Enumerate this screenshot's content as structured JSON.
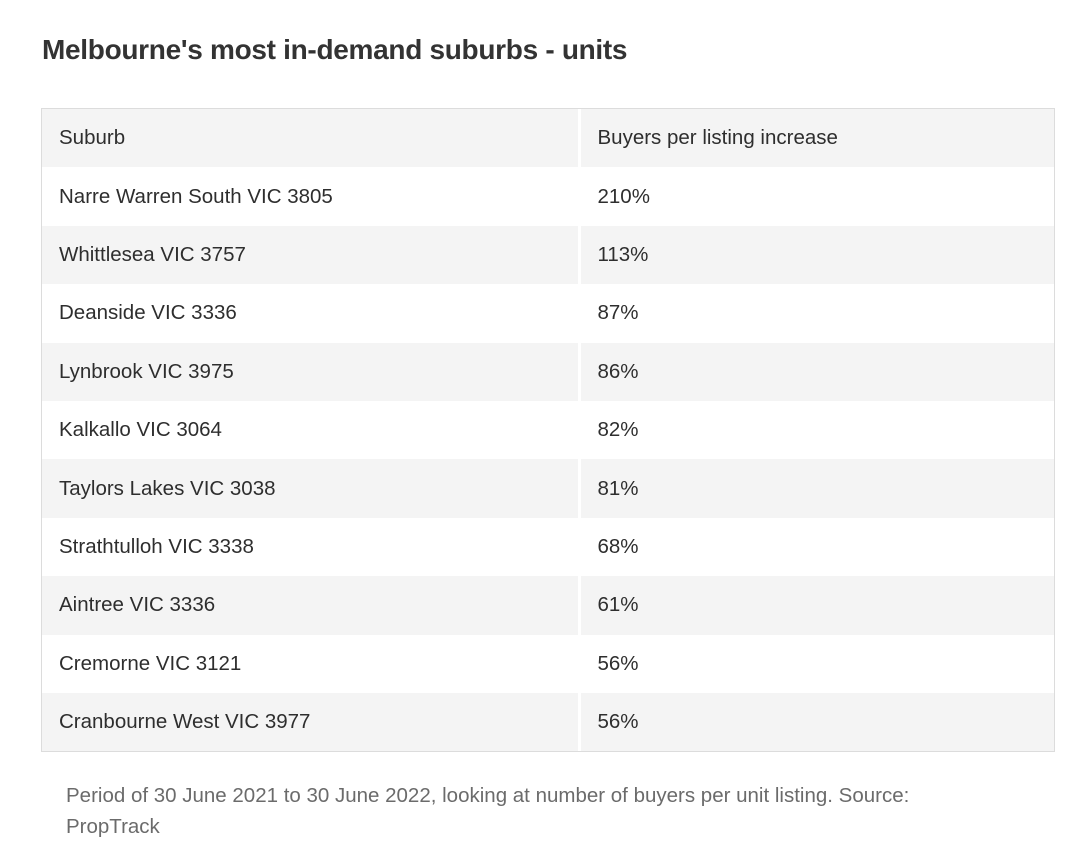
{
  "title": "Melbourne's most in-demand suburbs - units",
  "table": {
    "headers": [
      "Suburb",
      "Buyers per listing increase"
    ],
    "rows": [
      {
        "suburb": "Narre Warren South VIC 3805",
        "increase": "210%"
      },
      {
        "suburb": "Whittlesea VIC 3757",
        "increase": "113%"
      },
      {
        "suburb": "Deanside VIC 3336",
        "increase": "87%"
      },
      {
        "suburb": "Lynbrook VIC 3975",
        "increase": "86%"
      },
      {
        "suburb": "Kalkallo VIC 3064",
        "increase": "82%"
      },
      {
        "suburb": "Taylors Lakes VIC 3038",
        "increase": "81%"
      },
      {
        "suburb": "Strathtulloh VIC 3338",
        "increase": "68%"
      },
      {
        "suburb": "Aintree VIC 3336",
        "increase": "61%"
      },
      {
        "suburb": "Cremorne VIC 3121",
        "increase": "56%"
      },
      {
        "suburb": "Cranbourne West VIC 3977",
        "increase": "56%"
      }
    ]
  },
  "caption": "Period of 30 June 2021 to 30 June 2022, looking at number of buyers per unit listing. Source: PropTrack"
}
